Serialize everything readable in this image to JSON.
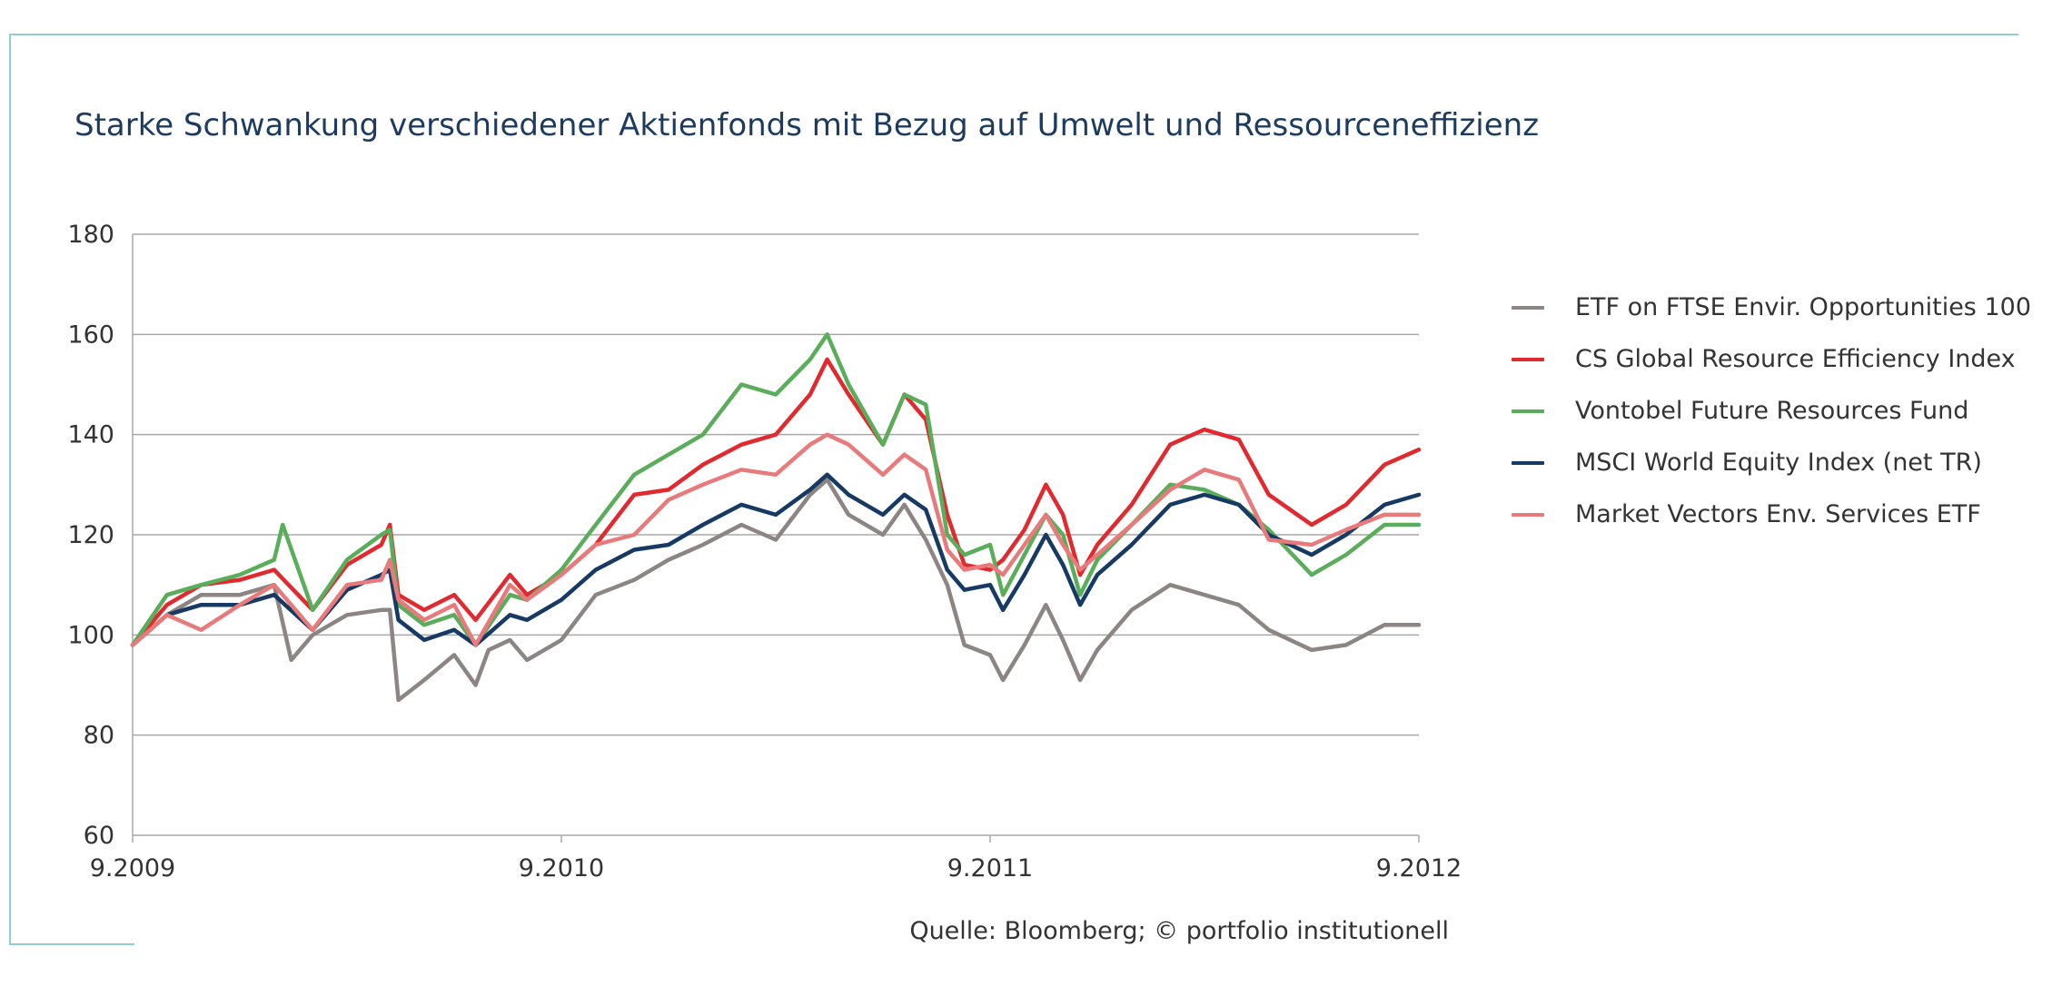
{
  "title": "Starke Schwankung verschiedener Aktienfonds mit Bezug auf Umwelt und Ressourceneffizienz",
  "source": "Quelle: Bloomberg; © portfolio institutionell",
  "chart_data": {
    "type": "line",
    "title": "Starke Schwankung verschiedener Aktienfonds mit Bezug auf Umwelt und Ressourceneffizienz",
    "xlabel": "",
    "ylabel": "",
    "ylim": [
      60,
      180
    ],
    "yticks": [
      "60",
      "80",
      "100",
      "120",
      "140",
      "160",
      "180"
    ],
    "xlim": [
      0,
      3
    ],
    "xticks": [
      {
        "value": 0,
        "label": "9.2009"
      },
      {
        "value": 1,
        "label": "9.2010"
      },
      {
        "value": 2,
        "label": "9.2011"
      },
      {
        "value": 3,
        "label": "9.2012"
      }
    ],
    "grid": true,
    "legend": "right",
    "series": [
      {
        "name": "ETF on FTSE Envir. Opportunities 100",
        "color": "#8c8584",
        "values": [
          [
            0,
            98
          ],
          [
            0.08,
            104
          ],
          [
            0.16,
            108
          ],
          [
            0.25,
            108
          ],
          [
            0.33,
            110
          ],
          [
            0.37,
            95
          ],
          [
            0.42,
            100
          ],
          [
            0.5,
            104
          ],
          [
            0.58,
            105
          ],
          [
            0.6,
            105
          ],
          [
            0.62,
            87
          ],
          [
            0.68,
            91
          ],
          [
            0.75,
            96
          ],
          [
            0.8,
            90
          ],
          [
            0.83,
            97
          ],
          [
            0.88,
            99
          ],
          [
            0.92,
            95
          ],
          [
            1,
            99
          ],
          [
            1.08,
            108
          ],
          [
            1.17,
            111
          ],
          [
            1.25,
            115
          ],
          [
            1.33,
            118
          ],
          [
            1.42,
            122
          ],
          [
            1.5,
            119
          ],
          [
            1.58,
            128
          ],
          [
            1.62,
            131
          ],
          [
            1.67,
            124
          ],
          [
            1.75,
            120
          ],
          [
            1.8,
            126
          ],
          [
            1.85,
            119
          ],
          [
            1.9,
            110
          ],
          [
            1.94,
            98
          ],
          [
            2.0,
            96
          ],
          [
            2.03,
            91
          ],
          [
            2.08,
            98
          ],
          [
            2.13,
            106
          ],
          [
            2.17,
            99
          ],
          [
            2.21,
            91
          ],
          [
            2.25,
            97
          ],
          [
            2.33,
            105
          ],
          [
            2.42,
            110
          ],
          [
            2.5,
            108
          ],
          [
            2.58,
            106
          ],
          [
            2.65,
            101
          ],
          [
            2.75,
            97
          ],
          [
            2.83,
            98
          ],
          [
            2.92,
            102
          ],
          [
            3,
            102
          ]
        ]
      },
      {
        "name": "CS Global Resource Efficiency Index",
        "color": "#e02a2f",
        "values": [
          [
            0,
            98
          ],
          [
            0.08,
            106
          ],
          [
            0.16,
            110
          ],
          [
            0.25,
            111
          ],
          [
            0.33,
            113
          ],
          [
            0.42,
            105
          ],
          [
            0.5,
            114
          ],
          [
            0.58,
            118
          ],
          [
            0.6,
            122
          ],
          [
            0.62,
            108
          ],
          [
            0.68,
            105
          ],
          [
            0.75,
            108
          ],
          [
            0.8,
            103
          ],
          [
            0.88,
            112
          ],
          [
            0.92,
            108
          ],
          [
            1,
            112
          ],
          [
            1.08,
            118
          ],
          [
            1.17,
            128
          ],
          [
            1.25,
            129
          ],
          [
            1.33,
            134
          ],
          [
            1.42,
            138
          ],
          [
            1.5,
            140
          ],
          [
            1.58,
            148
          ],
          [
            1.62,
            155
          ],
          [
            1.67,
            148
          ],
          [
            1.75,
            138
          ],
          [
            1.8,
            148
          ],
          [
            1.85,
            143
          ],
          [
            1.9,
            124
          ],
          [
            1.94,
            114
          ],
          [
            2.0,
            113
          ],
          [
            2.03,
            115
          ],
          [
            2.08,
            121
          ],
          [
            2.13,
            130
          ],
          [
            2.17,
            124
          ],
          [
            2.21,
            112
          ],
          [
            2.25,
            118
          ],
          [
            2.33,
            126
          ],
          [
            2.42,
            138
          ],
          [
            2.5,
            141
          ],
          [
            2.58,
            139
          ],
          [
            2.65,
            128
          ],
          [
            2.75,
            122
          ],
          [
            2.83,
            126
          ],
          [
            2.92,
            134
          ],
          [
            3,
            137
          ]
        ]
      },
      {
        "name": "Vontobel Future Resources Fund",
        "color": "#5aad5a",
        "values": [
          [
            0,
            98
          ],
          [
            0.08,
            108
          ],
          [
            0.16,
            110
          ],
          [
            0.25,
            112
          ],
          [
            0.33,
            115
          ],
          [
            0.35,
            122
          ],
          [
            0.42,
            105
          ],
          [
            0.5,
            115
          ],
          [
            0.58,
            120
          ],
          [
            0.6,
            121
          ],
          [
            0.62,
            106
          ],
          [
            0.68,
            102
          ],
          [
            0.75,
            104
          ],
          [
            0.8,
            98
          ],
          [
            0.88,
            108
          ],
          [
            0.92,
            107
          ],
          [
            1,
            113
          ],
          [
            1.08,
            122
          ],
          [
            1.17,
            132
          ],
          [
            1.25,
            136
          ],
          [
            1.33,
            140
          ],
          [
            1.42,
            150
          ],
          [
            1.5,
            148
          ],
          [
            1.58,
            155
          ],
          [
            1.62,
            160
          ],
          [
            1.67,
            150
          ],
          [
            1.75,
            138
          ],
          [
            1.8,
            148
          ],
          [
            1.85,
            146
          ],
          [
            1.9,
            120
          ],
          [
            1.94,
            116
          ],
          [
            2.0,
            118
          ],
          [
            2.03,
            108
          ],
          [
            2.08,
            116
          ],
          [
            2.13,
            124
          ],
          [
            2.17,
            120
          ],
          [
            2.21,
            108
          ],
          [
            2.25,
            115
          ],
          [
            2.33,
            122
          ],
          [
            2.42,
            130
          ],
          [
            2.5,
            129
          ],
          [
            2.58,
            126
          ],
          [
            2.65,
            121
          ],
          [
            2.75,
            112
          ],
          [
            2.83,
            116
          ],
          [
            2.92,
            122
          ],
          [
            3,
            122
          ]
        ]
      },
      {
        "name": "MSCI World Equity Index (net TR)",
        "color": "#163a63",
        "values": [
          [
            0,
            98
          ],
          [
            0.08,
            104
          ],
          [
            0.16,
            106
          ],
          [
            0.25,
            106
          ],
          [
            0.33,
            108
          ],
          [
            0.42,
            101
          ],
          [
            0.5,
            109
          ],
          [
            0.58,
            112
          ],
          [
            0.6,
            113
          ],
          [
            0.62,
            103
          ],
          [
            0.68,
            99
          ],
          [
            0.75,
            101
          ],
          [
            0.8,
            98
          ],
          [
            0.88,
            104
          ],
          [
            0.92,
            103
          ],
          [
            1,
            107
          ],
          [
            1.08,
            113
          ],
          [
            1.17,
            117
          ],
          [
            1.25,
            118
          ],
          [
            1.33,
            122
          ],
          [
            1.42,
            126
          ],
          [
            1.5,
            124
          ],
          [
            1.58,
            129
          ],
          [
            1.62,
            132
          ],
          [
            1.67,
            128
          ],
          [
            1.75,
            124
          ],
          [
            1.8,
            128
          ],
          [
            1.85,
            125
          ],
          [
            1.9,
            113
          ],
          [
            1.94,
            109
          ],
          [
            2.0,
            110
          ],
          [
            2.03,
            105
          ],
          [
            2.08,
            112
          ],
          [
            2.13,
            120
          ],
          [
            2.17,
            114
          ],
          [
            2.21,
            106
          ],
          [
            2.25,
            112
          ],
          [
            2.33,
            118
          ],
          [
            2.42,
            126
          ],
          [
            2.5,
            128
          ],
          [
            2.58,
            126
          ],
          [
            2.65,
            120
          ],
          [
            2.75,
            116
          ],
          [
            2.83,
            120
          ],
          [
            2.92,
            126
          ],
          [
            3,
            128
          ]
        ]
      },
      {
        "name": "Market Vectors Env. Services ETF",
        "color": "#e87a7b",
        "values": [
          [
            0,
            98
          ],
          [
            0.08,
            104
          ],
          [
            0.16,
            101
          ],
          [
            0.25,
            106
          ],
          [
            0.33,
            110
          ],
          [
            0.42,
            101
          ],
          [
            0.5,
            110
          ],
          [
            0.58,
            111
          ],
          [
            0.6,
            115
          ],
          [
            0.62,
            107
          ],
          [
            0.68,
            103
          ],
          [
            0.75,
            106
          ],
          [
            0.8,
            98
          ],
          [
            0.88,
            110
          ],
          [
            0.92,
            107
          ],
          [
            1,
            112
          ],
          [
            1.08,
            118
          ],
          [
            1.17,
            120
          ],
          [
            1.25,
            127
          ],
          [
            1.33,
            130
          ],
          [
            1.42,
            133
          ],
          [
            1.5,
            132
          ],
          [
            1.58,
            138
          ],
          [
            1.62,
            140
          ],
          [
            1.67,
            138
          ],
          [
            1.75,
            132
          ],
          [
            1.8,
            136
          ],
          [
            1.85,
            133
          ],
          [
            1.9,
            117
          ],
          [
            1.94,
            113
          ],
          [
            2.0,
            114
          ],
          [
            2.03,
            112
          ],
          [
            2.08,
            118
          ],
          [
            2.13,
            124
          ],
          [
            2.17,
            118
          ],
          [
            2.21,
            113
          ],
          [
            2.25,
            116
          ],
          [
            2.33,
            122
          ],
          [
            2.42,
            129
          ],
          [
            2.5,
            133
          ],
          [
            2.58,
            131
          ],
          [
            2.65,
            119
          ],
          [
            2.75,
            118
          ],
          [
            2.83,
            121
          ],
          [
            2.92,
            124
          ],
          [
            3,
            124
          ]
        ]
      }
    ]
  }
}
